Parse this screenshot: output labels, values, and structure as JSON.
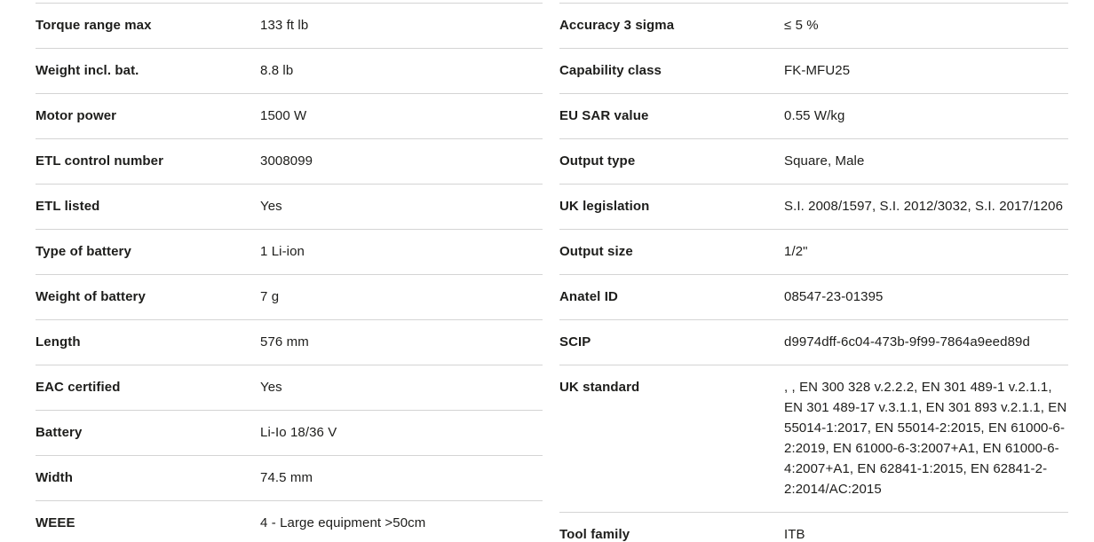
{
  "colors": {
    "background": "#ffffff",
    "text": "#1d1d1b",
    "divider": "#d4d4d4"
  },
  "table": {
    "columns": [
      {
        "name": "left",
        "rows": [
          {
            "label": "Torque range max",
            "value": "133 ft lb"
          },
          {
            "label": "Weight incl. bat.",
            "value": "8.8 lb"
          },
          {
            "label": "Motor power",
            "value": "1500 W"
          },
          {
            "label": "ETL control number",
            "value": "3008099"
          },
          {
            "label": "ETL listed",
            "value": "Yes"
          },
          {
            "label": "Type of battery",
            "value": "1 Li-ion"
          },
          {
            "label": "Weight of battery",
            "value": "7 g"
          },
          {
            "label": "Length",
            "value": "576 mm"
          },
          {
            "label": "EAC certified",
            "value": "Yes"
          },
          {
            "label": "Battery",
            "value": "Li-Io 18/36 V"
          },
          {
            "label": "Width",
            "value": "74.5 mm"
          },
          {
            "label": "WEEE",
            "value": "4 - Large equipment >50cm"
          }
        ]
      },
      {
        "name": "right",
        "rows": [
          {
            "label": "Accuracy 3 sigma",
            "value": "≤ 5 %"
          },
          {
            "label": "Capability class",
            "value": "FK-MFU25"
          },
          {
            "label": "EU SAR value",
            "value": "0.55 W/kg"
          },
          {
            "label": "Output type",
            "value": "Square, Male"
          },
          {
            "label": "UK legislation",
            "value": "S.I. 2008/1597, S.I. 2012/3032, S.I. 2017/1206"
          },
          {
            "label": "Output size",
            "value": "1/2\""
          },
          {
            "label": "Anatel ID",
            "value": "08547-23-01395"
          },
          {
            "label": "SCIP",
            "value": "d9974dff-6c04-473b-9f99-7864a9eed89d"
          },
          {
            "label": "UK standard",
            "value": ", , EN 300 328 v.2.2.2, EN 301 489-1 v.2.1.1, EN 301 489-17 v.3.1.1, EN 301 893 v.2.1.1, EN 55014-1:2017, EN 55014-2:2015, EN 61000-6-2:2019, EN 61000-6-3:2007+A1, EN 61000-6-4:2007+A1, EN 62841-1:2015, EN 62841-2-2:2014/AC:2015"
          },
          {
            "label": "Tool family",
            "value": "ITB"
          }
        ]
      }
    ]
  }
}
